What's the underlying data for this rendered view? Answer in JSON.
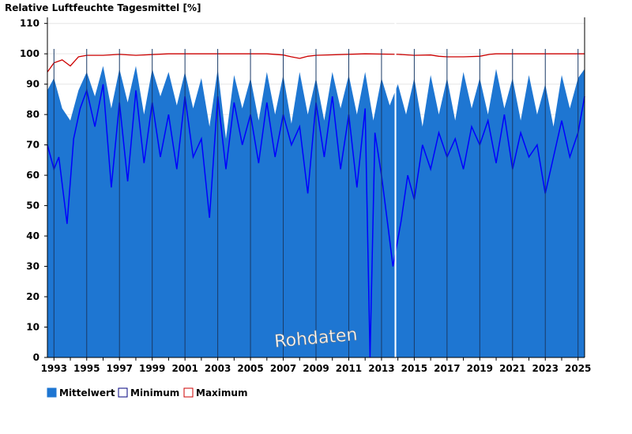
{
  "chart_data": {
    "type": "area",
    "title": "Relative Luftfeuchte Tagesmittel [%]",
    "watermark": "Rohdaten",
    "x_range": [
      1992.6,
      2025.4
    ],
    "ylim": [
      0,
      112
    ],
    "y_ticks": [
      0,
      10,
      20,
      30,
      40,
      50,
      60,
      70,
      80,
      90,
      100,
      110
    ],
    "x_tick_years": [
      1993,
      1995,
      1997,
      1999,
      2001,
      2003,
      2005,
      2007,
      2009,
      2011,
      2013,
      2015,
      2017,
      2019,
      2021,
      2023,
      2025
    ],
    "x_tick_labels": [
      "1993",
      "1995",
      "1997",
      "1999",
      "2001",
      "2003",
      "2005",
      "2007",
      "2009",
      "2011",
      "2013",
      "2015",
      "2017",
      "2019",
      "2021",
      "2023",
      "2025"
    ],
    "data_gap": [
      2013.8,
      2013.9
    ],
    "series": [
      {
        "name": "Mittelwert",
        "color": "#1e76d2",
        "x": [
          1992.6,
          1993.0,
          1993.5,
          1994.0,
          1994.5,
          1995.0,
          1995.5,
          1996.0,
          1996.5,
          1997.0,
          1997.5,
          1998.0,
          1998.5,
          1999.0,
          1999.5,
          2000.0,
          2000.5,
          2001.0,
          2001.5,
          2002.0,
          2002.5,
          2003.0,
          2003.5,
          2004.0,
          2004.5,
          2005.0,
          2005.5,
          2006.0,
          2006.5,
          2007.0,
          2007.5,
          2008.0,
          2008.5,
          2009.0,
          2009.5,
          2010.0,
          2010.5,
          2011.0,
          2011.5,
          2012.0,
          2012.5,
          2013.0,
          2013.5,
          2014.0,
          2014.5,
          2015.0,
          2015.5,
          2016.0,
          2016.5,
          2017.0,
          2017.5,
          2018.0,
          2018.5,
          2019.0,
          2019.5,
          2020.0,
          2020.5,
          2021.0,
          2021.5,
          2022.0,
          2022.5,
          2023.0,
          2023.5,
          2024.0,
          2024.5,
          2025.0,
          2025.4
        ],
        "values": [
          88,
          92,
          82,
          78,
          88,
          94,
          86,
          96,
          82,
          95,
          84,
          96,
          80,
          95,
          86,
          94,
          83,
          94,
          82,
          92,
          76,
          95,
          72,
          93,
          82,
          92,
          78,
          94,
          80,
          93,
          77,
          94,
          80,
          92,
          78,
          94,
          82,
          93,
          80,
          94,
          78,
          92,
          83,
          90,
          80,
          92,
          76,
          93,
          80,
          92,
          78,
          94,
          82,
          92,
          80,
          95,
          82,
          92,
          78,
          93,
          80,
          90,
          76,
          93,
          82,
          92,
          95
        ]
      },
      {
        "name": "Minimum",
        "color": "#0000ff",
        "x": [
          1992.6,
          1993.0,
          1993.3,
          1993.8,
          1994.2,
          1994.6,
          1995.0,
          1995.5,
          1996.0,
          1996.5,
          1997.0,
          1997.5,
          1998.0,
          1998.5,
          1999.0,
          1999.5,
          2000.0,
          2000.5,
          2001.0,
          2001.5,
          2002.0,
          2002.5,
          2003.0,
          2003.5,
          2004.0,
          2004.5,
          2005.0,
          2005.5,
          2006.0,
          2006.5,
          2007.0,
          2007.5,
          2008.0,
          2008.5,
          2009.0,
          2009.5,
          2010.0,
          2010.5,
          2011.0,
          2011.5,
          2012.0,
          2012.3,
          2012.6,
          2013.0,
          2013.4,
          2013.7,
          2014.2,
          2014.6,
          2015.0,
          2015.5,
          2016.0,
          2016.5,
          2017.0,
          2017.5,
          2018.0,
          2018.5,
          2019.0,
          2019.5,
          2020.0,
          2020.5,
          2021.0,
          2021.5,
          2022.0,
          2022.5,
          2023.0,
          2023.5,
          2024.0,
          2024.5,
          2025.0,
          2025.4
        ],
        "values": [
          70,
          62,
          66,
          44,
          72,
          82,
          88,
          76,
          90,
          56,
          84,
          58,
          88,
          64,
          84,
          66,
          80,
          62,
          86,
          66,
          72,
          46,
          86,
          62,
          84,
          70,
          80,
          64,
          84,
          66,
          80,
          70,
          76,
          54,
          84,
          66,
          86,
          62,
          80,
          56,
          82,
          0,
          74,
          60,
          43,
          30,
          45,
          60,
          52,
          70,
          62,
          74,
          66,
          72,
          62,
          76,
          70,
          78,
          64,
          80,
          62,
          74,
          66,
          70,
          54,
          66,
          78,
          66,
          74,
          86
        ]
      },
      {
        "name": "Maximum",
        "color": "#cc0000",
        "x": [
          1992.6,
          1993.0,
          1993.5,
          1994.0,
          1994.5,
          1995.0,
          1996.0,
          1997.0,
          1998.0,
          2000.0,
          2004.0,
          2006.0,
          2007.0,
          2007.5,
          2008.0,
          2008.5,
          2009.0,
          2012.0,
          2014.0,
          2015.0,
          2016.0,
          2016.5,
          2017.0,
          2018.0,
          2019.0,
          2019.6,
          2020.0,
          2022.0,
          2024.0,
          2025.4
        ],
        "values": [
          94,
          97,
          98,
          96,
          99,
          99.5,
          99.5,
          99.8,
          99.5,
          100,
          100,
          100,
          99.6,
          99,
          98.5,
          99.2,
          99.5,
          100,
          99.8,
          99.5,
          99.6,
          99.2,
          99,
          99,
          99.2,
          99.8,
          100,
          100,
          100,
          100
        ]
      }
    ],
    "legend": {
      "position": "bottom-left",
      "items": [
        {
          "label": "Mittelwert",
          "fill": "#1e76d2",
          "stroke": "#1e76d2"
        },
        {
          "label": "Minimum",
          "fill": "#ffffff",
          "stroke": "#00007f"
        },
        {
          "label": "Maximum",
          "fill": "#ffffff",
          "stroke": "#cc0000"
        }
      ]
    }
  }
}
